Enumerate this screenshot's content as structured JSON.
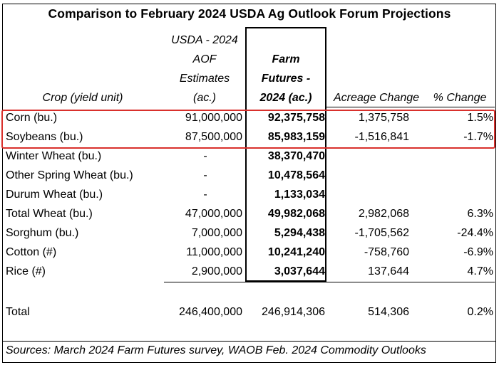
{
  "title": "Comparison to February 2024 USDA Ag Outlook Forum Projections",
  "headers": {
    "crop": "Crop (yield unit)",
    "usda": [
      "USDA - 2024",
      "AOF",
      "Estimates",
      "(ac.)"
    ],
    "farm": [
      "Farm",
      "Futures -",
      "2024 (ac.)"
    ],
    "change": "Acreage Change",
    "pct": "% Change"
  },
  "rows": [
    {
      "crop": "Corn (bu.)",
      "usda": "91,000,000",
      "farm": "92,375,758",
      "change": "1,375,758",
      "pct": "1.5%"
    },
    {
      "crop": "Soybeans (bu.)",
      "usda": "87,500,000",
      "farm": "85,983,159",
      "change": "-1,516,841",
      "pct": "-1.7%"
    },
    {
      "crop": "Winter Wheat (bu.)",
      "usda": "-",
      "farm": "38,370,470",
      "change": "",
      "pct": ""
    },
    {
      "crop": "Other Spring Wheat (bu.)",
      "usda": "-",
      "farm": "10,478,564",
      "change": "",
      "pct": ""
    },
    {
      "crop": "Durum Wheat (bu.)",
      "usda": "-",
      "farm": "1,133,034",
      "change": "",
      "pct": ""
    },
    {
      "crop": "Total Wheat (bu.)",
      "usda": "47,000,000",
      "farm": "49,982,068",
      "change": "2,982,068",
      "pct": "6.3%"
    },
    {
      "crop": "Sorghum (bu.)",
      "usda": "7,000,000",
      "farm": "5,294,438",
      "change": "-1,705,562",
      "pct": "-24.4%"
    },
    {
      "crop": "Cotton (#)",
      "usda": "11,000,000",
      "farm": "10,241,240",
      "change": "-758,760",
      "pct": "-6.9%"
    },
    {
      "crop": "Rice (#)",
      "usda": "2,900,000",
      "farm": "3,037,644",
      "change": "137,644",
      "pct": "4.7%"
    }
  ],
  "total": {
    "crop": "Total",
    "usda": "246,400,000",
    "farm": "246,914,306",
    "change": "514,306",
    "pct": "0.2%"
  },
  "source": "Sources: March 2024 Farm Futures survey, WAOB Feb. 2024 Commodity Outlooks",
  "colors": {
    "highlight_border": "#d9302c"
  }
}
